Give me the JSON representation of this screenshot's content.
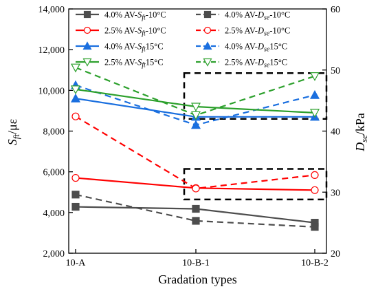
{
  "chart_data": {
    "type": "line",
    "categories": [
      "10-A",
      "10-B-1",
      "10-B-2"
    ],
    "xlabel": "Gradation types",
    "ylabel_left": {
      "main": "S",
      "sub": "ft",
      "tail": "/με"
    },
    "ylabel_right": {
      "main": "D",
      "sub": "se",
      "tail": "/kPa"
    },
    "y_left": {
      "lim": [
        2000,
        14000
      ],
      "ticks": [
        2000,
        4000,
        6000,
        8000,
        10000,
        12000,
        14000
      ],
      "tick_labels": [
        "2,000",
        "4,000",
        "6,000",
        "8,000",
        "10,000",
        "12,000",
        "14,000"
      ]
    },
    "y_right": {
      "lim": [
        20,
        60
      ],
      "ticks": [
        20,
        30,
        40,
        50,
        60
      ],
      "tick_labels": [
        "20",
        "30",
        "40",
        "50",
        "60"
      ]
    },
    "grid": false,
    "legend_position": "top (inside plot, two columns)",
    "series": [
      {
        "name": {
          "pre": "4.0% AV-",
          "main": "S",
          "sub": "ft",
          "post": "-10°C"
        },
        "axis": "left",
        "style": "solid",
        "marker": "square",
        "filled": true,
        "color": "#4d4d4d",
        "values": [
          4280,
          4180,
          3500
        ]
      },
      {
        "name": {
          "pre": "4.0% AV-",
          "main": "D",
          "sub": "se",
          "post": "-10°C"
        },
        "axis": "right",
        "style": "dashed",
        "marker": "square",
        "filled": true,
        "color": "#4d4d4d",
        "values": [
          29.6,
          25.3,
          24.3
        ]
      },
      {
        "name": {
          "pre": "2.5% AV-",
          "main": "S",
          "sub": "ft",
          "post": "-10°C"
        },
        "axis": "left",
        "style": "solid",
        "marker": "circle",
        "filled": false,
        "color": "#ff0000",
        "values": [
          5700,
          5200,
          5100
        ]
      },
      {
        "name": {
          "pre": "2.5% AV-",
          "main": "D",
          "sub": "se",
          "post": "-10°C"
        },
        "axis": "right",
        "style": "dashed",
        "marker": "circle",
        "filled": false,
        "color": "#ff0000",
        "values": [
          42.4,
          30.6,
          32.8
        ]
      },
      {
        "name": {
          "pre": "4.0% AV-",
          "main": "S",
          "sub": "ft",
          "post": "15°C"
        },
        "axis": "left",
        "style": "solid",
        "marker": "triangle-up",
        "filled": true,
        "color": "#1a6fdf",
        "values": [
          9600,
          8700,
          8700
        ]
      },
      {
        "name": {
          "pre": "4.0% AV-",
          "main": "D",
          "sub": "se",
          "post": "15°C"
        },
        "axis": "right",
        "style": "dashed",
        "marker": "triangle-up",
        "filled": true,
        "color": "#1a6fdf",
        "values": [
          47.5,
          41.0,
          45.9
        ]
      },
      {
        "name": {
          "pre": "2.5% AV-",
          "main": "S",
          "sub": "ft",
          "post": "15°C"
        },
        "axis": "left",
        "style": "solid",
        "marker": "triangle-down",
        "filled": false,
        "color": "#2ca02c",
        "values": [
          10050,
          9200,
          8900
        ]
      },
      {
        "name": {
          "pre": "2.5% AV-",
          "main": "D",
          "sub": "se",
          "post": "15°C"
        },
        "axis": "right",
        "style": "dashed",
        "marker": "triangle-down",
        "filled": false,
        "color": "#2ca02c",
        "values": [
          50.4,
          42.6,
          49.0
        ]
      }
    ],
    "annotations": [
      {
        "type": "dashed-box",
        "x_range": [
          "10-B-1",
          "10-B-2"
        ],
        "axis": "right",
        "y_range": [
          42.0,
          49.5
        ]
      },
      {
        "type": "dashed-box",
        "x_range": [
          "10-B-1",
          "10-B-2"
        ],
        "axis": "right",
        "y_range": [
          28.8,
          33.8
        ]
      }
    ]
  }
}
